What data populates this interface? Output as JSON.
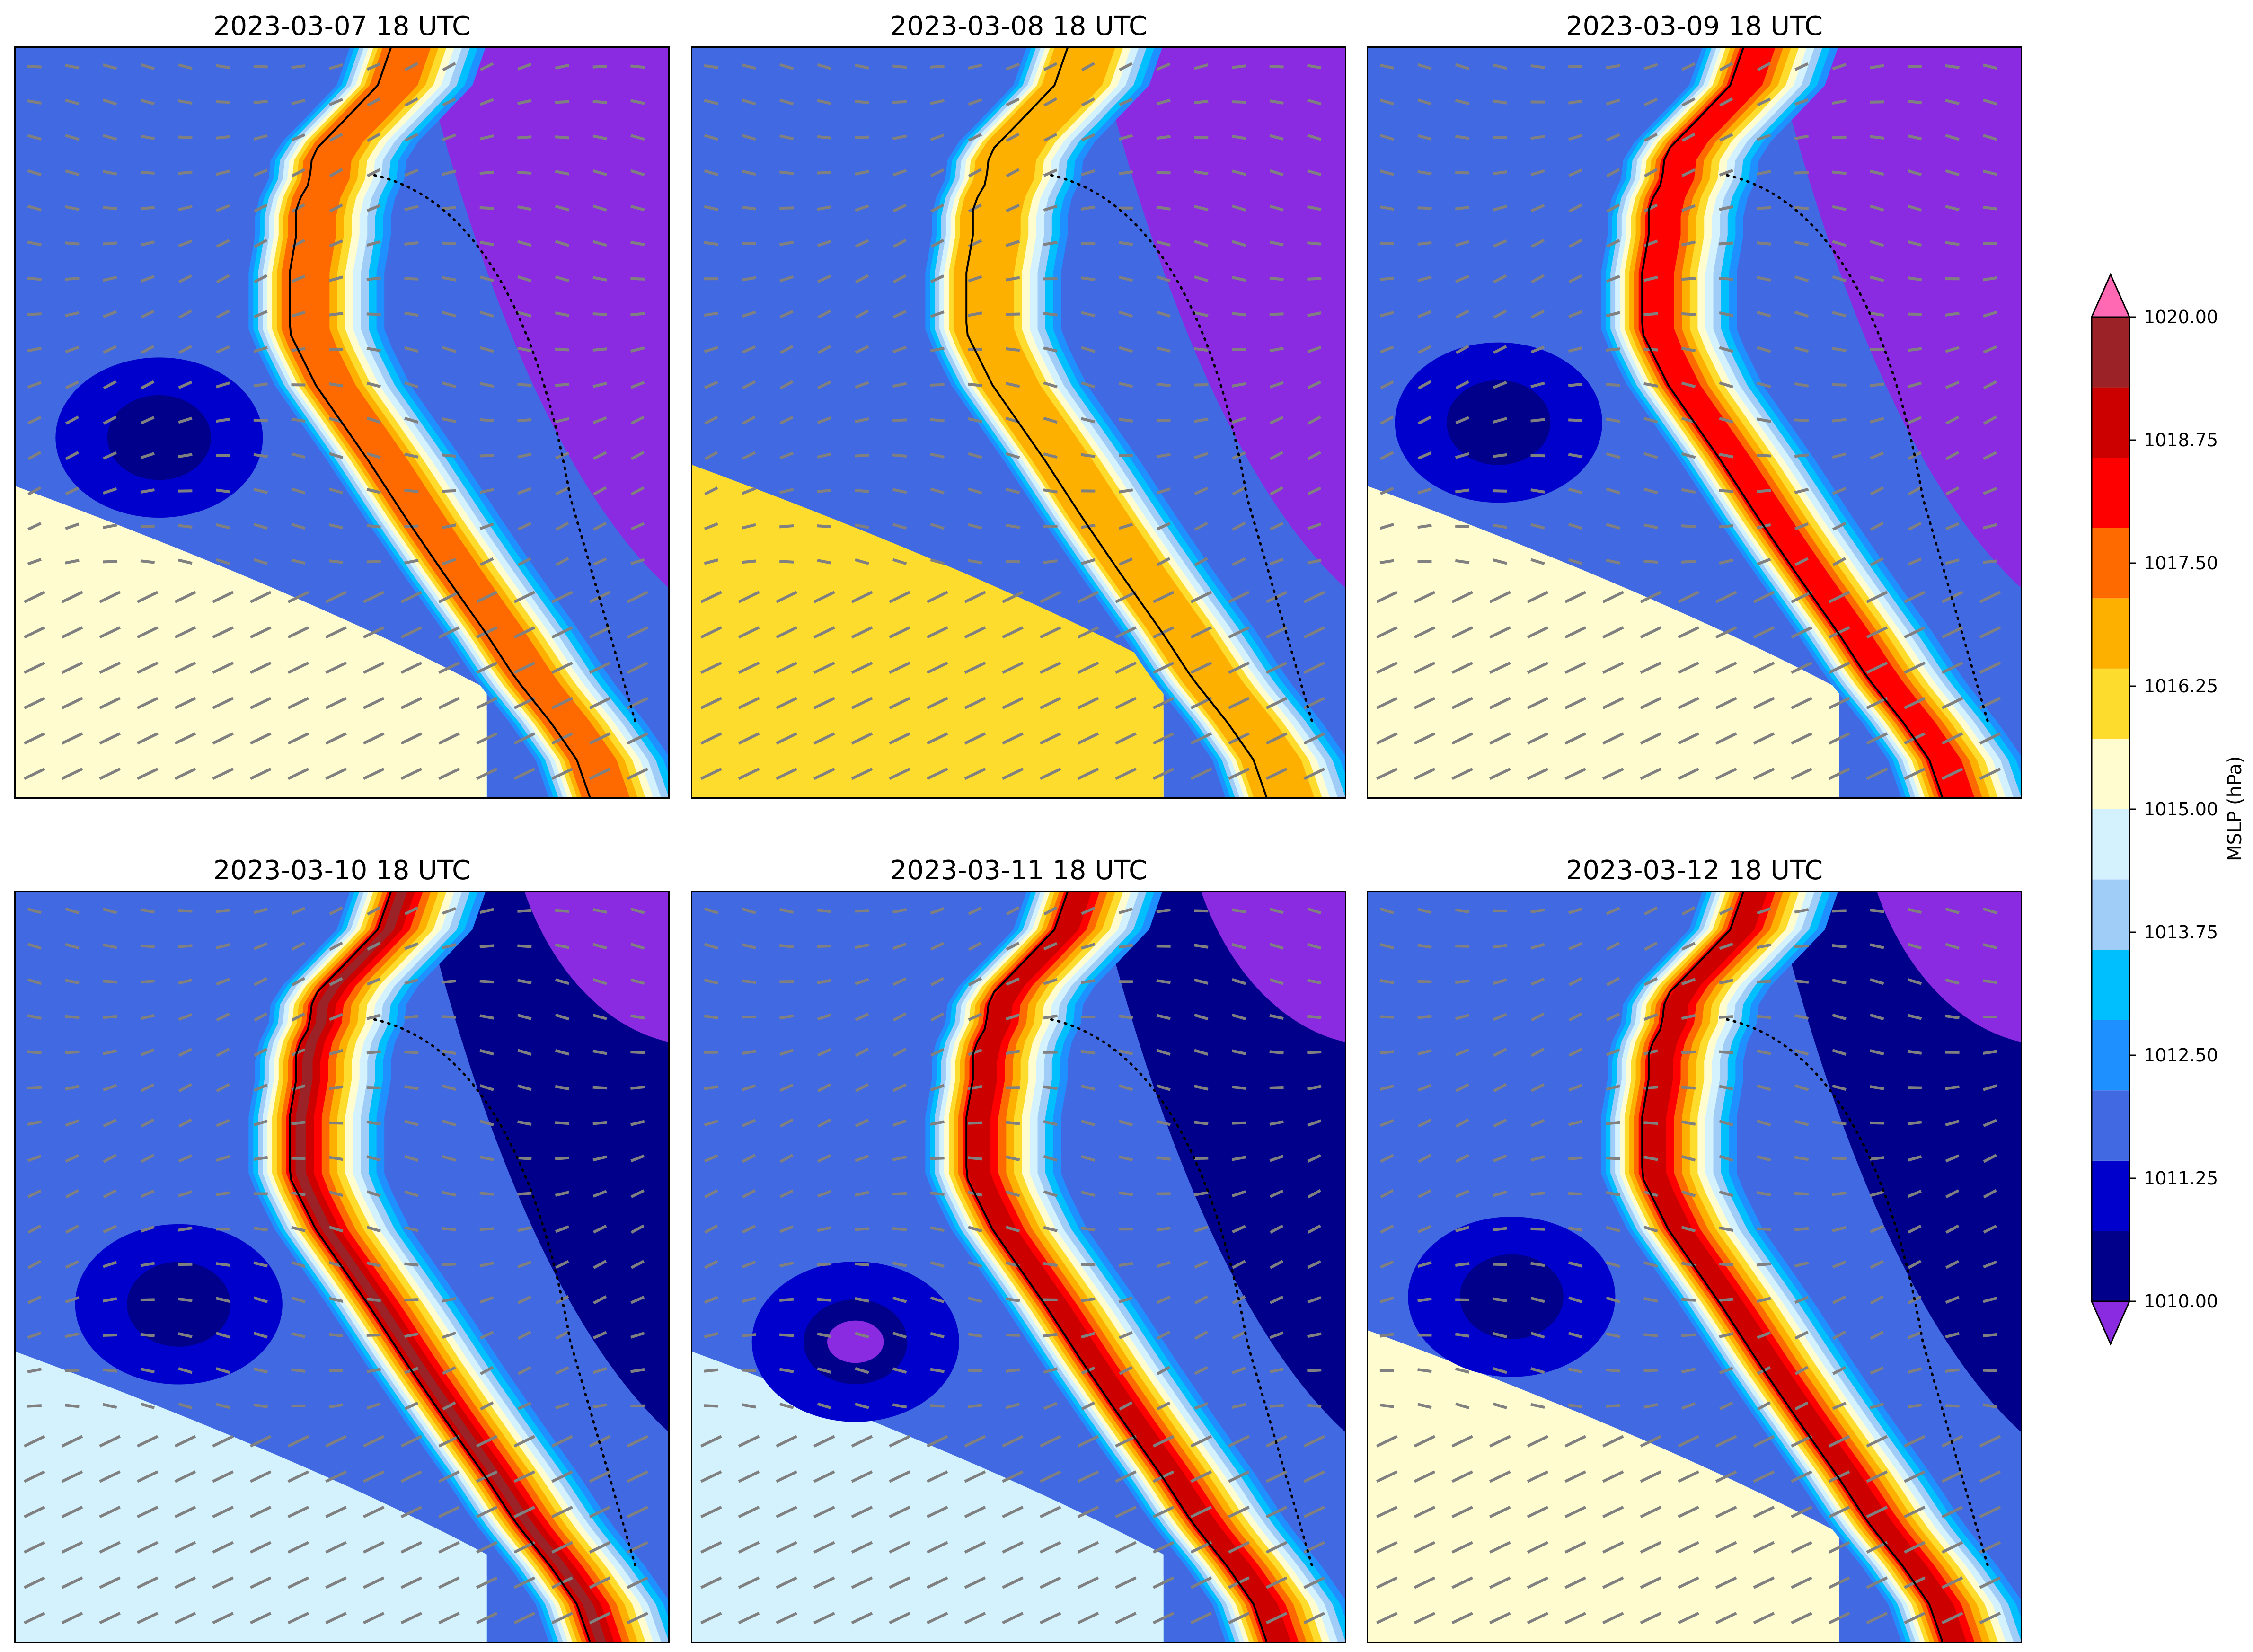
{
  "panels": [
    {
      "title": "2023-03-07 18 UTC",
      "day": 0
    },
    {
      "title": "2023-03-08 18 UTC",
      "day": 1
    },
    {
      "title": "2023-03-09 18 UTC",
      "day": 2
    },
    {
      "title": "2023-03-10 18 UTC",
      "day": 3
    },
    {
      "title": "2023-03-11 18 UTC",
      "day": 4
    },
    {
      "title": "2023-03-12 18 UTC",
      "day": 5
    }
  ],
  "colorbar": {
    "label": "MSLP (hPa)",
    "ticks": [
      "1020.00",
      "1018.75",
      "1017.50",
      "1016.25",
      "1015.00",
      "1013.75",
      "1012.50",
      "1011.25",
      "1010.00"
    ],
    "levels": [
      1010.0,
      1010.625,
      1011.25,
      1011.875,
      1012.5,
      1013.125,
      1013.75,
      1014.375,
      1015.0,
      1015.625,
      1016.25,
      1016.875,
      1017.5,
      1018.125,
      1018.75,
      1019.375,
      1020.0
    ],
    "colors": [
      "#8a2be2",
      "#00008b",
      "#0000cd",
      "#4169e1",
      "#1e90ff",
      "#00bfff",
      "#a0ccf8",
      "#d4f2fe",
      "#fffdd0",
      "#fddc2e",
      "#fdb000",
      "#ff6a00",
      "#ff0000",
      "#cd0000",
      "#9b2226",
      "#ff69b4"
    ],
    "extend": "both"
  },
  "legend": {
    "contour_field": "MSLP (hPa)",
    "vector_field_color": "#808080",
    "coastline_color": "#000000",
    "border_style": "dotted"
  }
}
